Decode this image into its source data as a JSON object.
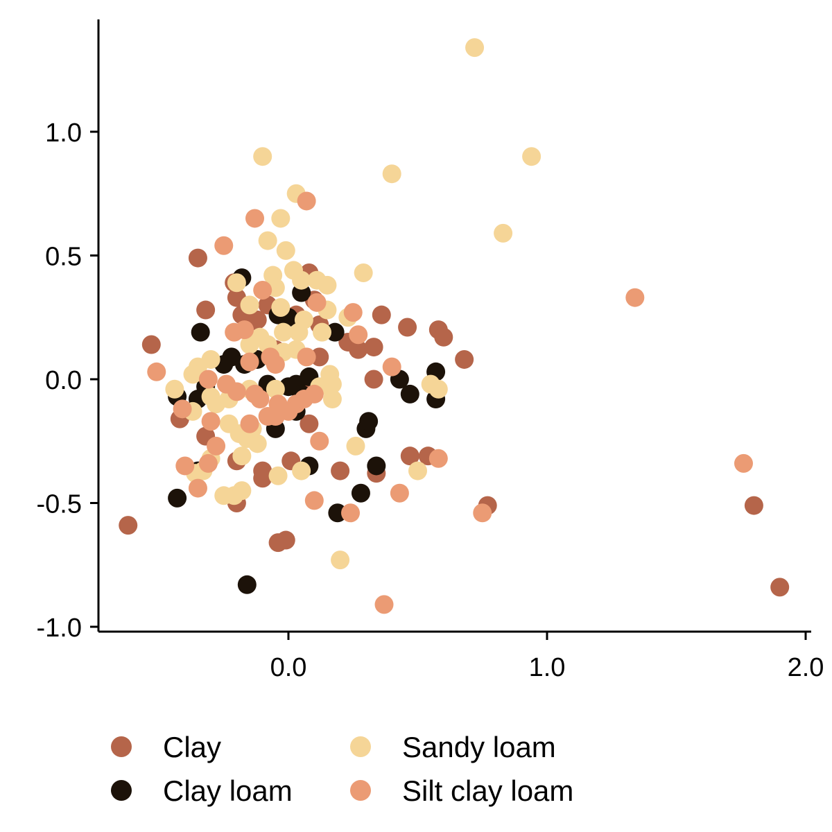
{
  "chart_data": {
    "type": "scatter",
    "title": "",
    "xlabel": "",
    "ylabel": "",
    "xlim": [
      -0.74,
      2.0
    ],
    "ylim": [
      -1.02,
      1.45
    ],
    "x_ticks": [
      0.0,
      1.0,
      2.0
    ],
    "x_tick_labels": [
      "0.0",
      "1.0",
      "2.0"
    ],
    "y_ticks": [
      -1.0,
      -0.5,
      0.0,
      0.5,
      1.0
    ],
    "y_tick_labels": [
      "-1.0",
      "-0.5",
      "0.0",
      "0.5",
      "1.0"
    ],
    "grid": false,
    "legend_position": "bottom",
    "series": [
      {
        "name": "Clay",
        "color": "#B5654A",
        "points": [
          [
            -0.35,
            0.49
          ],
          [
            -0.32,
            0.28
          ],
          [
            -0.53,
            0.14
          ],
          [
            -0.62,
            -0.59
          ],
          [
            -0.21,
            0.39
          ],
          [
            -0.2,
            0.33
          ],
          [
            -0.18,
            0.26
          ],
          [
            -0.15,
            0.2
          ],
          [
            -0.12,
            0.24
          ],
          [
            -0.08,
            0.3
          ],
          [
            0.08,
            0.43
          ],
          [
            0.1,
            0.32
          ],
          [
            0.03,
            0.26
          ],
          [
            0.12,
            0.22
          ],
          [
            0.23,
            0.15
          ],
          [
            0.27,
            0.12
          ],
          [
            0.36,
            0.26
          ],
          [
            0.33,
            0.13
          ],
          [
            0.46,
            0.21
          ],
          [
            0.58,
            0.2
          ],
          [
            0.6,
            0.17
          ],
          [
            0.68,
            0.08
          ],
          [
            0.33,
            0.0
          ],
          [
            -0.14,
            -0.2
          ],
          [
            -0.2,
            -0.33
          ],
          [
            -0.1,
            -0.37
          ],
          [
            -0.1,
            -0.4
          ],
          [
            -0.2,
            -0.5
          ],
          [
            -0.04,
            -0.66
          ],
          [
            -0.01,
            -0.65
          ],
          [
            0.01,
            -0.33
          ],
          [
            0.08,
            -0.18
          ],
          [
            0.2,
            -0.37
          ],
          [
            0.34,
            -0.38
          ],
          [
            0.47,
            -0.31
          ],
          [
            0.54,
            -0.31
          ],
          [
            0.77,
            -0.51
          ],
          [
            1.8,
            -0.51
          ],
          [
            1.9,
            -0.84
          ],
          [
            -0.42,
            -0.16
          ],
          [
            -0.32,
            -0.23
          ],
          [
            0.12,
            0.09
          ],
          [
            -0.05,
            0.12
          ],
          [
            0.05,
            -0.05
          ]
        ]
      },
      {
        "name": "Clay loam",
        "color": "#1C1209",
        "points": [
          [
            -0.34,
            0.19
          ],
          [
            -0.18,
            0.41
          ],
          [
            -0.04,
            0.26
          ],
          [
            0.0,
            0.25
          ],
          [
            0.05,
            0.35
          ],
          [
            0.18,
            0.19
          ],
          [
            -0.22,
            0.09
          ],
          [
            -0.17,
            0.06
          ],
          [
            -0.08,
            -0.02
          ],
          [
            0.0,
            -0.03
          ],
          [
            0.03,
            -0.02
          ],
          [
            0.08,
            0.01
          ],
          [
            -0.32,
            -0.03
          ],
          [
            -0.35,
            -0.08
          ],
          [
            -0.43,
            -0.07
          ],
          [
            -0.43,
            -0.48
          ],
          [
            -0.35,
            -0.37
          ],
          [
            -0.16,
            -0.83
          ],
          [
            -0.05,
            -0.2
          ],
          [
            0.03,
            -0.13
          ],
          [
            0.08,
            -0.35
          ],
          [
            0.19,
            -0.54
          ],
          [
            0.28,
            -0.46
          ],
          [
            0.3,
            -0.2
          ],
          [
            0.31,
            -0.17
          ],
          [
            0.34,
            -0.35
          ],
          [
            0.43,
            0.0
          ],
          [
            0.47,
            -0.06
          ],
          [
            0.57,
            0.03
          ],
          [
            0.57,
            -0.08
          ],
          [
            -0.25,
            0.06
          ],
          [
            -0.12,
            0.08
          ],
          [
            0.05,
            -0.06
          ]
        ]
      },
      {
        "name": "Sandy loam",
        "color": "#F5D597",
        "points": [
          [
            0.72,
            1.34
          ],
          [
            0.94,
            0.9
          ],
          [
            -0.1,
            0.9
          ],
          [
            0.4,
            0.83
          ],
          [
            0.03,
            0.75
          ],
          [
            -0.03,
            0.65
          ],
          [
            -0.08,
            0.56
          ],
          [
            -0.01,
            0.52
          ],
          [
            0.83,
            0.59
          ],
          [
            0.29,
            0.43
          ],
          [
            -0.06,
            0.42
          ],
          [
            0.02,
            0.44
          ],
          [
            0.05,
            0.4
          ],
          [
            0.11,
            0.4
          ],
          [
            0.15,
            0.38
          ],
          [
            -0.05,
            0.37
          ],
          [
            -0.2,
            0.39
          ],
          [
            -0.15,
            0.3
          ],
          [
            -0.03,
            0.29
          ],
          [
            0.06,
            0.24
          ],
          [
            0.15,
            0.28
          ],
          [
            0.13,
            0.19
          ],
          [
            0.04,
            0.19
          ],
          [
            -0.02,
            0.19
          ],
          [
            0.23,
            0.25
          ],
          [
            -0.11,
            0.17
          ],
          [
            -0.08,
            0.14
          ],
          [
            -0.15,
            0.14
          ],
          [
            -0.02,
            0.11
          ],
          [
            0.03,
            0.12
          ],
          [
            -0.35,
            0.05
          ],
          [
            -0.3,
            0.08
          ],
          [
            -0.37,
            0.02
          ],
          [
            -0.44,
            -0.04
          ],
          [
            -0.3,
            -0.07
          ],
          [
            -0.28,
            -0.1
          ],
          [
            -0.23,
            -0.08
          ],
          [
            -0.15,
            -0.04
          ],
          [
            -0.05,
            -0.04
          ],
          [
            0.16,
            0.02
          ],
          [
            0.17,
            -0.02
          ],
          [
            0.17,
            -0.08
          ],
          [
            0.12,
            -0.03
          ],
          [
            0.55,
            -0.02
          ],
          [
            0.58,
            -0.04
          ],
          [
            -0.37,
            -0.13
          ],
          [
            -0.23,
            -0.18
          ],
          [
            -0.19,
            -0.22
          ],
          [
            -0.16,
            -0.24
          ],
          [
            -0.12,
            -0.26
          ],
          [
            -0.18,
            -0.31
          ],
          [
            -0.3,
            -0.32
          ],
          [
            -0.21,
            -0.47
          ],
          [
            -0.25,
            -0.47
          ],
          [
            -0.18,
            -0.45
          ],
          [
            -0.04,
            -0.39
          ],
          [
            0.05,
            -0.37
          ],
          [
            0.26,
            -0.27
          ],
          [
            0.5,
            -0.37
          ],
          [
            0.2,
            -0.73
          ],
          [
            -0.36,
            -0.38
          ],
          [
            -0.33,
            -0.37
          ],
          [
            -0.14,
            -0.2
          ]
        ]
      },
      {
        "name": "Silt clay loam",
        "color": "#EB9B74",
        "points": [
          [
            0.07,
            0.72
          ],
          [
            -0.13,
            0.65
          ],
          [
            -0.25,
            0.54
          ],
          [
            -0.1,
            0.36
          ],
          [
            0.11,
            0.31
          ],
          [
            0.25,
            0.27
          ],
          [
            0.27,
            0.18
          ],
          [
            0.4,
            0.05
          ],
          [
            -0.21,
            0.19
          ],
          [
            -0.17,
            0.2
          ],
          [
            -0.15,
            0.07
          ],
          [
            -0.07,
            0.09
          ],
          [
            -0.05,
            0.06
          ],
          [
            0.07,
            0.09
          ],
          [
            -0.51,
            0.03
          ],
          [
            -0.31,
            0.0
          ],
          [
            -0.24,
            -0.02
          ],
          [
            -0.2,
            -0.05
          ],
          [
            -0.13,
            -0.06
          ],
          [
            -0.04,
            -0.1
          ],
          [
            0.03,
            -0.1
          ],
          [
            0.06,
            -0.08
          ],
          [
            0.1,
            -0.06
          ],
          [
            -0.41,
            -0.12
          ],
          [
            -0.3,
            -0.17
          ],
          [
            -0.28,
            -0.27
          ],
          [
            -0.31,
            -0.34
          ],
          [
            -0.4,
            -0.35
          ],
          [
            -0.35,
            -0.44
          ],
          [
            -0.08,
            -0.15
          ],
          [
            -0.05,
            -0.15
          ],
          [
            0.12,
            -0.25
          ],
          [
            0.1,
            -0.49
          ],
          [
            0.24,
            -0.54
          ],
          [
            0.43,
            -0.46
          ],
          [
            0.58,
            -0.32
          ],
          [
            0.75,
            -0.54
          ],
          [
            1.34,
            0.33
          ],
          [
            1.76,
            -0.34
          ],
          [
            0.37,
            -0.91
          ],
          [
            -0.15,
            -0.18
          ],
          [
            -0.11,
            -0.08
          ],
          [
            0.0,
            -0.13
          ]
        ]
      }
    ]
  }
}
